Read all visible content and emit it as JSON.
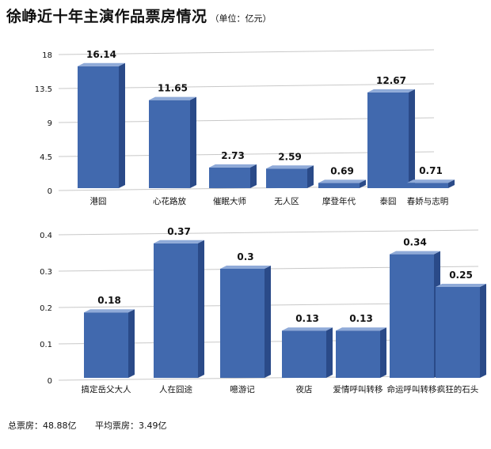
{
  "title": "徐峥近十年主演作品票房情况",
  "unit": "（单位：亿元）",
  "footer": {
    "total": "总票房：48.88亿",
    "average": "平均票房：3.49亿"
  },
  "colors": {
    "bar_front": "#4169AE",
    "bar_top": "#8FAAD8",
    "bar_side": "#2A4A88",
    "grid": "#C8C8C8"
  },
  "chart_data": [
    {
      "type": "bar",
      "categories": [
        "港囧",
        "心花路放",
        "催眠大师",
        "无人区",
        "摩登年代",
        "泰囧",
        "春娇与志明"
      ],
      "values": [
        16.14,
        11.65,
        2.73,
        2.59,
        0.69,
        12.67,
        0.71
      ],
      "value_labels": [
        "16.14",
        "11.65",
        "2.73",
        "2.59",
        "0.69",
        "12.67",
        "0.71"
      ],
      "yticks": [
        "0",
        "4.5",
        "9",
        "13.5",
        "18"
      ],
      "ylim": [
        0,
        18
      ],
      "grid": true
    },
    {
      "type": "bar",
      "categories": [
        "搞定岳父大人",
        "人在囧途",
        "噫游记",
        "夜店",
        "爱情呼叫转移",
        "命运呼叫转移",
        "疯狂的石头"
      ],
      "values": [
        0.18,
        0.37,
        0.3,
        0.13,
        0.13,
        0.34,
        0.25
      ],
      "value_labels": [
        "0.18",
        "0.37",
        "0.3",
        "0.13",
        "0.13",
        "0.34",
        "0.25"
      ],
      "yticks": [
        "0",
        "0.1",
        "0.2",
        "0.3",
        "0.4"
      ],
      "ylim": [
        0,
        0.4
      ],
      "grid": true
    }
  ]
}
